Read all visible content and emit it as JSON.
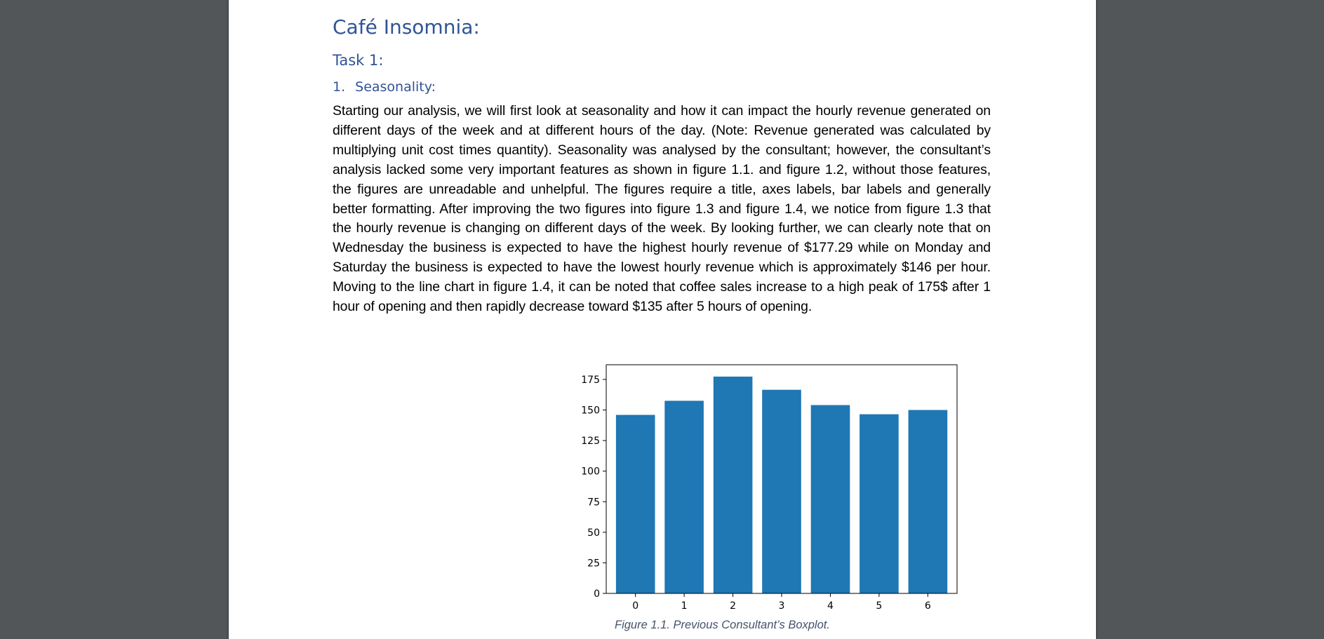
{
  "document": {
    "title": "Café Insomnia:",
    "task_heading": "Task 1:",
    "section_number": "1.",
    "section_title": "Seasonality:",
    "paragraph": "Starting our analysis, we will first look at seasonality and how it can impact the hourly revenue generated on different days of the week and at different hours of the day. (Note: Revenue generated was calculated by multiplying unit cost times quantity). Seasonality was analysed by the consultant; however, the consultant’s analysis lacked some very important features as shown in figure 1.1. and figure 1.2, without those features, the figures are unreadable and unhelpful. The figures require a title, axes labels, bar labels and generally better formatting. After improving the two figures into figure 1.3 and figure 1.4, we notice from figure 1.3 that the hourly revenue is changing on different days of the week. By looking further, we can clearly note that on Wednesday the business is expected to have the highest hourly revenue of $177.29 while on Monday and Saturday the business is expected to have the lowest hourly revenue which is approximately $146 per hour. Moving to the line chart in figure 1.4, it can be noted that coffee sales increase to a high peak of 175$ after 1 hour of opening and then rapidly decrease toward $135 after 5 hours of opening.",
    "figure_caption": "Figure 1.1. Previous Consultant’s Boxplot."
  },
  "chart_data": {
    "type": "bar",
    "categories": [
      "0",
      "1",
      "2",
      "3",
      "4",
      "5",
      "6"
    ],
    "values": [
      146,
      157.5,
      177.3,
      166.5,
      154,
      146.5,
      150
    ],
    "title": "",
    "xlabel": "",
    "ylabel": "",
    "ylim": [
      0,
      187
    ],
    "yticks": [
      "0",
      "25",
      "50",
      "75",
      "100",
      "125",
      "150",
      "175"
    ],
    "bar_color": "#1f77b4",
    "grid": false,
    "legend": "none"
  }
}
